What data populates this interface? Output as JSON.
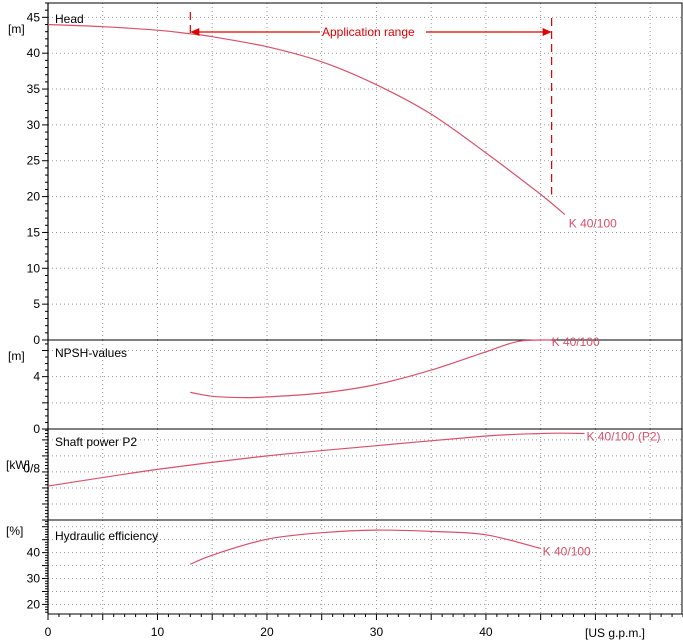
{
  "colors": {
    "curve": "#d9506a",
    "range": "#e00000",
    "grid": "#9a9a9a",
    "axis": "#000000"
  },
  "chart_data": [
    {
      "type": "line",
      "title": "Head",
      "ylabel": "[m]",
      "ylim": [
        0,
        47
      ],
      "xlim": [
        0,
        58
      ],
      "yticks": [
        "0",
        "5",
        "10",
        "15",
        "20",
        "25",
        "30",
        "35",
        "40",
        "45"
      ],
      "annotation": {
        "label": "Application range",
        "x_start": 13,
        "x_end": 46
      },
      "series": [
        {
          "name": "K 40/100",
          "x": [
            0,
            5,
            10,
            13,
            15,
            20,
            25,
            30,
            35,
            40,
            45,
            47.2
          ],
          "values": [
            44.0,
            43.7,
            43.2,
            42.7,
            42.3,
            40.9,
            38.8,
            35.6,
            31.5,
            26.1,
            20.3,
            17.5
          ]
        }
      ]
    },
    {
      "type": "line",
      "title": "NPSH-values",
      "ylabel": "[m]",
      "ylim": [
        0,
        6.8
      ],
      "xlim": [
        0,
        58
      ],
      "yticks": [
        "0",
        "4"
      ],
      "series": [
        {
          "name": "K 40/100",
          "x": [
            13,
            15,
            18,
            20,
            25,
            30,
            35,
            40,
            43,
            46
          ],
          "values": [
            2.8,
            2.5,
            2.4,
            2.45,
            2.75,
            3.4,
            4.5,
            5.9,
            6.7,
            6.8
          ]
        }
      ]
    },
    {
      "type": "line",
      "title": "Shaft power P2",
      "ylabel": "[kW]",
      "ylim": [
        0,
        1.42
      ],
      "xlim": [
        0,
        58
      ],
      "yticks": [
        "0/8"
      ],
      "series": [
        {
          "name": "K 40/100 (P2)",
          "x": [
            0,
            10,
            20,
            30,
            40,
            45,
            47,
            49
          ],
          "values": [
            0.53,
            0.79,
            1.0,
            1.16,
            1.31,
            1.35,
            1.355,
            1.35
          ]
        }
      ]
    },
    {
      "type": "line",
      "title": "Hydraulic efficiency",
      "ylabel": "[%]",
      "ylim": [
        16.3,
        52.6
      ],
      "xlim": [
        0,
        58
      ],
      "yticks": [
        "20",
        "30",
        "40"
      ],
      "series": [
        {
          "name": "K 40/100",
          "x": [
            13,
            15,
            20,
            25,
            30,
            35,
            40,
            45
          ],
          "values": [
            35.5,
            39.0,
            45.2,
            47.7,
            48.7,
            48.2,
            46.9,
            41.6
          ]
        }
      ]
    }
  ],
  "xaxis": {
    "ticks": [
      "0",
      "10",
      "20",
      "30",
      "40"
    ],
    "ticks_values": [
      0,
      10,
      20,
      30,
      40
    ],
    "unit": "[US g.p.m.]"
  }
}
